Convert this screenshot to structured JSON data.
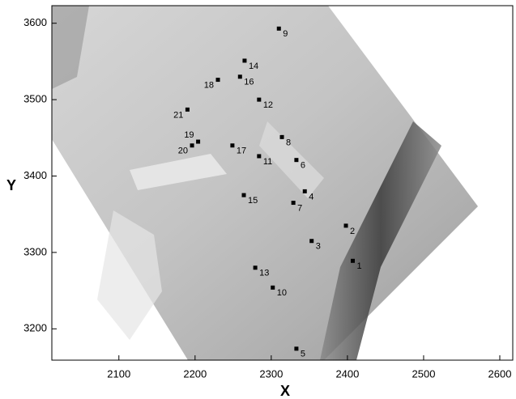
{
  "chart_data": {
    "type": "scatter",
    "x_label": "X",
    "y_label": "Y",
    "color": "#000000",
    "xlim": [
      2012,
      2617
    ],
    "ylim": [
      3159,
      3623
    ],
    "xticks": [
      2100,
      2200,
      2300,
      2400,
      2500,
      2600
    ],
    "yticks": [
      3200,
      3300,
      3400,
      3500,
      3600
    ],
    "points": [
      {
        "label": "1",
        "x": 2407,
        "y": 3289
      },
      {
        "label": "2",
        "x": 2398,
        "y": 3335
      },
      {
        "label": "3",
        "x": 2353,
        "y": 3315
      },
      {
        "label": "4",
        "x": 2344,
        "y": 3380
      },
      {
        "label": "5",
        "x": 2333,
        "y": 3174
      },
      {
        "label": "6",
        "x": 2333,
        "y": 3421
      },
      {
        "label": "7",
        "x": 2329,
        "y": 3365
      },
      {
        "label": "8",
        "x": 2314,
        "y": 3451
      },
      {
        "label": "9",
        "x": 2310,
        "y": 3593
      },
      {
        "label": "10",
        "x": 2302,
        "y": 3254
      },
      {
        "label": "11",
        "x": 2284,
        "y": 3426
      },
      {
        "label": "12",
        "x": 2284,
        "y": 3500
      },
      {
        "label": "13",
        "x": 2279,
        "y": 3280
      },
      {
        "label": "14",
        "x": 2265,
        "y": 3551
      },
      {
        "label": "15",
        "x": 2264,
        "y": 3375
      },
      {
        "label": "16",
        "x": 2259,
        "y": 3530
      },
      {
        "label": "17",
        "x": 2249,
        "y": 3440
      },
      {
        "label": "18",
        "x": 2230,
        "y": 3526
      },
      {
        "label": "19",
        "x": 2204,
        "y": 3445
      },
      {
        "label": "20",
        "x": 2196,
        "y": 3440
      },
      {
        "label": "21",
        "x": 2190,
        "y": 3487
      }
    ]
  }
}
